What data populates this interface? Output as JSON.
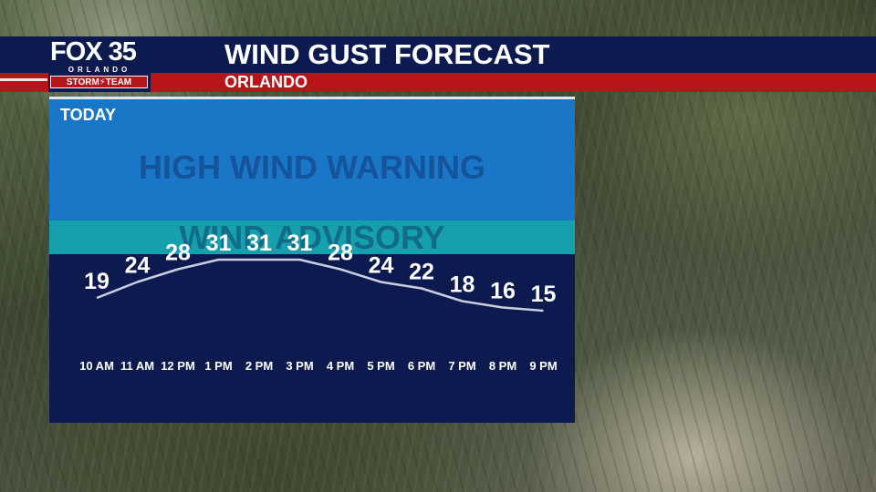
{
  "header": {
    "logo_main": "FOX 35",
    "logo_city": "ORLANDO",
    "logo_team": "STORM⚡TEAM",
    "title": "WIND GUST FORECAST",
    "location": "ORLANDO"
  },
  "panel": {
    "period": "TODAY",
    "zone_warning": "HIGH WIND WARNING",
    "zone_advisory": "WIND ADVISORY"
  },
  "colors": {
    "navy": "#0c1a4f",
    "red": "#b8151b",
    "warning_zone": "#1a77c8",
    "advisory_zone": "#169fac"
  },
  "chart_data": {
    "type": "line",
    "categories": [
      "10 AM",
      "11 AM",
      "12 PM",
      "1 PM",
      "2 PM",
      "3 PM",
      "4 PM",
      "5 PM",
      "6 PM",
      "7 PM",
      "8 PM",
      "9 PM"
    ],
    "values": [
      19,
      24,
      28,
      31,
      31,
      31,
      28,
      24,
      22,
      18,
      16,
      15
    ],
    "title": "WIND GUST FORECAST",
    "xlabel": "",
    "ylabel": "",
    "grid": false,
    "legend": "none"
  }
}
